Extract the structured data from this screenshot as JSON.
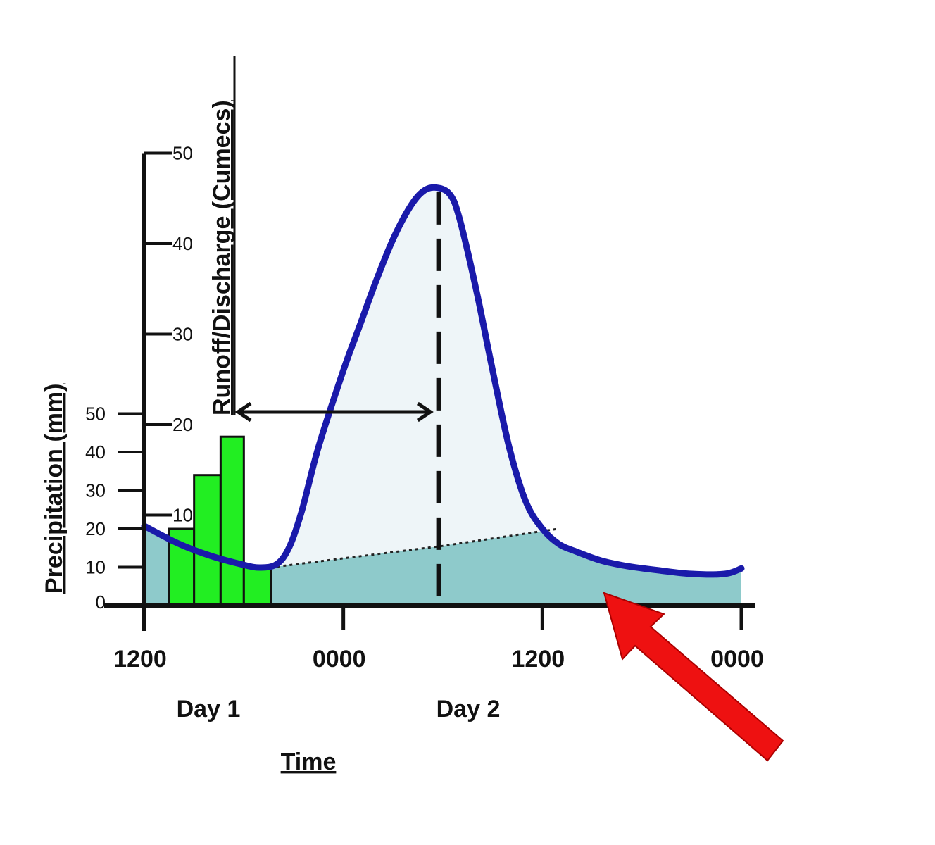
{
  "chart_data": {
    "type": "bar",
    "title": "",
    "colors": {
      "bars": "#22ee22",
      "bar_stroke": "#111111",
      "hydrograph": "#1a1aaa",
      "baseflow_fill": "#8ecacb",
      "quickflow_fill": "#eef5f8",
      "arrow": "#ee1111",
      "axes": "#111111"
    },
    "axes": {
      "x": {
        "label": "Time",
        "tick_labels": [
          "1200",
          "0000",
          "1200",
          "0000"
        ],
        "day_labels": [
          "Day 1",
          "Day 2"
        ],
        "range_hours": [
          0,
          72
        ]
      },
      "y_precipitation": {
        "label": "Precipitation (mm)",
        "ticks": [
          0,
          10,
          20,
          30,
          40,
          50
        ],
        "range": [
          0,
          50
        ]
      },
      "y_discharge": {
        "label": "Runoff/Discharge (Cumecs)",
        "ticks": [
          10,
          20,
          30,
          40,
          50
        ],
        "range": [
          0,
          50
        ]
      }
    },
    "precipitation_bars": {
      "values_mm": [
        20,
        34,
        44,
        10
      ],
      "start_hours": [
        3,
        6,
        9.2,
        12
      ]
    },
    "hydrograph": {
      "x_hours": [
        0,
        4,
        8,
        12,
        14,
        16,
        17.5,
        19,
        21,
        24,
        26,
        28,
        30,
        32,
        33.5,
        35,
        36.8,
        38,
        40,
        42,
        44,
        46,
        48,
        50,
        52,
        55,
        58,
        62,
        66,
        70,
        72
      ],
      "discharge": [
        8.8,
        6.9,
        5.5,
        4.5,
        4.2,
        4.6,
        6.5,
        10.5,
        17.5,
        26,
        31,
        36,
        40.5,
        44,
        45.7,
        46.2,
        45.5,
        42.8,
        35,
        26,
        17.5,
        11.5,
        8.5,
        6.8,
        6.0,
        5.0,
        4.4,
        3.9,
        3.5,
        3.5,
        4.1
      ]
    },
    "baseflow_line": {
      "x_hours": [
        16,
        36,
        50
      ],
      "discharge": [
        4.3,
        6.6,
        8.5
      ]
    },
    "peak_marker": {
      "x_hours": 35.5
    },
    "lag_arrow": {
      "from_hours": 11.3,
      "to_hours": 34.5,
      "discharge": 21
    }
  }
}
